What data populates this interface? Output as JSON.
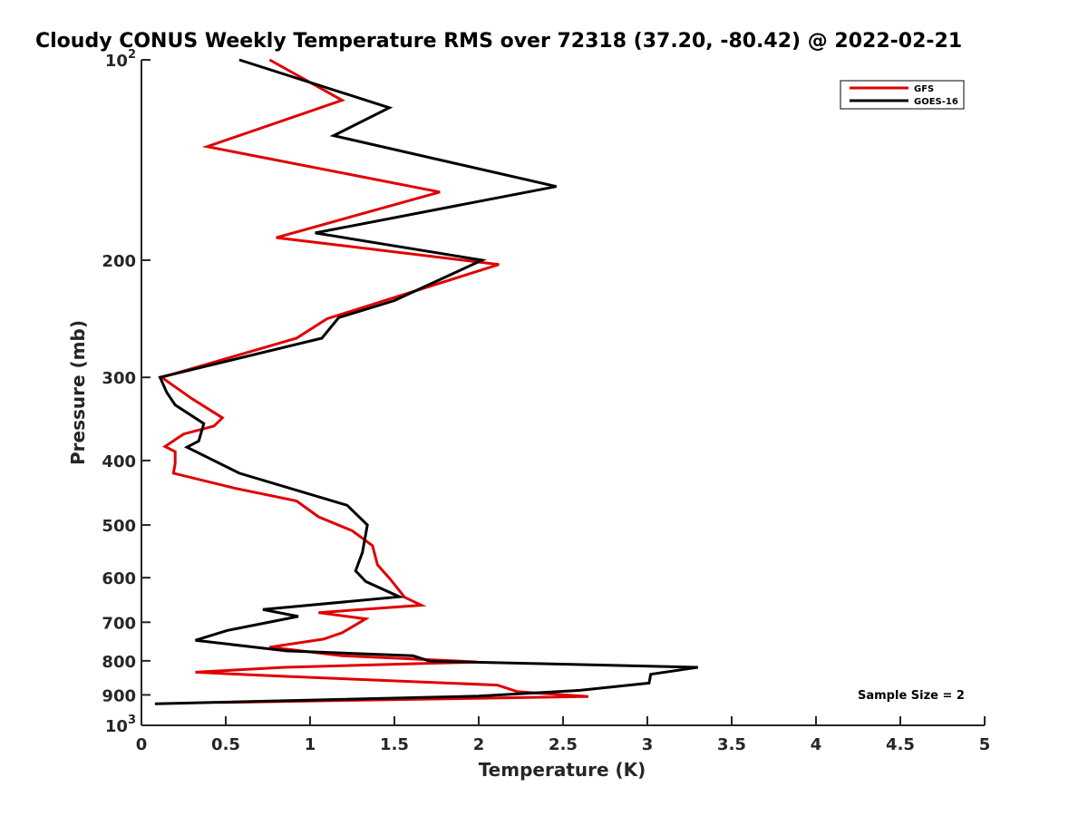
{
  "chart_data": {
    "type": "line",
    "title": "Cloudy CONUS Weekly Temperature RMS over 72318 (37.20, -80.42) @ 2022-02-21",
    "xlabel": "Temperature (K)",
    "ylabel": "Pressure (mb)",
    "xlim": [
      0,
      5
    ],
    "ylim": [
      100,
      1000
    ],
    "yscale": "log",
    "yreversed": true,
    "x_ticks": [
      "0",
      "0.5",
      "1",
      "1.5",
      "2",
      "2.5",
      "3",
      "3.5",
      "4",
      "4.5",
      "5"
    ],
    "y_ticks": [
      {
        "value": 100,
        "base": "10",
        "exp": "2"
      },
      {
        "value": 200,
        "label": "200"
      },
      {
        "value": 300,
        "label": "300"
      },
      {
        "value": 400,
        "label": "400"
      },
      {
        "value": 500,
        "label": "500"
      },
      {
        "value": 600,
        "label": "600"
      },
      {
        "value": 700,
        "label": "700"
      },
      {
        "value": 800,
        "label": "800"
      },
      {
        "value": 900,
        "label": "900"
      },
      {
        "value": 1000,
        "base": "10",
        "exp": "3"
      }
    ],
    "grid": false,
    "legend_position": "top-right",
    "annotation": "Sample Size = 2",
    "series": [
      {
        "name": "GFS",
        "color": "#e00000",
        "points": [
          [
            0.76,
            100
          ],
          [
            1.19,
            115
          ],
          [
            0.39,
            135
          ],
          [
            1.77,
            158
          ],
          [
            0.8,
            185
          ],
          [
            2.12,
            203
          ],
          [
            1.1,
            245
          ],
          [
            0.92,
            262
          ],
          [
            0.12,
            300
          ],
          [
            0.3,
            323
          ],
          [
            0.48,
            345
          ],
          [
            0.43,
            355
          ],
          [
            0.25,
            365
          ],
          [
            0.14,
            381
          ],
          [
            0.2,
            388
          ],
          [
            0.2,
            404
          ],
          [
            0.19,
            418
          ],
          [
            0.55,
            440
          ],
          [
            0.92,
            460
          ],
          [
            1.05,
            486
          ],
          [
            1.25,
            510
          ],
          [
            1.37,
            537
          ],
          [
            1.4,
            574
          ],
          [
            1.48,
            605
          ],
          [
            1.56,
            642
          ],
          [
            1.66,
            660
          ],
          [
            1.05,
            677
          ],
          [
            1.33,
            692
          ],
          [
            1.19,
            726
          ],
          [
            1.08,
            742
          ],
          [
            0.76,
            763
          ],
          [
            1.19,
            786
          ],
          [
            1.99,
            803
          ],
          [
            0.85,
            818
          ],
          [
            0.32,
            832
          ],
          [
            0.84,
            844
          ],
          [
            2.11,
            870
          ],
          [
            2.23,
            890
          ],
          [
            2.65,
            905
          ],
          [
            0.46,
            924
          ]
        ]
      },
      {
        "name": "GOES-16",
        "color": "#000000",
        "points": [
          [
            0.58,
            100
          ],
          [
            1.47,
            118
          ],
          [
            1.14,
            130
          ],
          [
            2.46,
            155
          ],
          [
            1.03,
            182
          ],
          [
            2.02,
            200
          ],
          [
            1.5,
            230
          ],
          [
            1.17,
            244
          ],
          [
            1.07,
            262
          ],
          [
            0.11,
            300
          ],
          [
            0.15,
            316
          ],
          [
            0.2,
            330
          ],
          [
            0.37,
            352
          ],
          [
            0.34,
            374
          ],
          [
            0.27,
            382
          ],
          [
            0.58,
            418
          ],
          [
            1.22,
            467
          ],
          [
            1.34,
            500
          ],
          [
            1.31,
            550
          ],
          [
            1.27,
            586
          ],
          [
            1.33,
            608
          ],
          [
            1.53,
            641
          ],
          [
            0.72,
            670
          ],
          [
            0.93,
            686
          ],
          [
            0.51,
            720
          ],
          [
            0.32,
            745
          ],
          [
            0.86,
            773
          ],
          [
            1.61,
            786
          ],
          [
            1.71,
            801
          ],
          [
            2.75,
            812
          ],
          [
            3.3,
            818
          ],
          [
            3.02,
            838
          ],
          [
            3.01,
            864
          ],
          [
            2.6,
            886
          ],
          [
            2.0,
            904
          ],
          [
            0.08,
            928
          ]
        ]
      }
    ]
  }
}
